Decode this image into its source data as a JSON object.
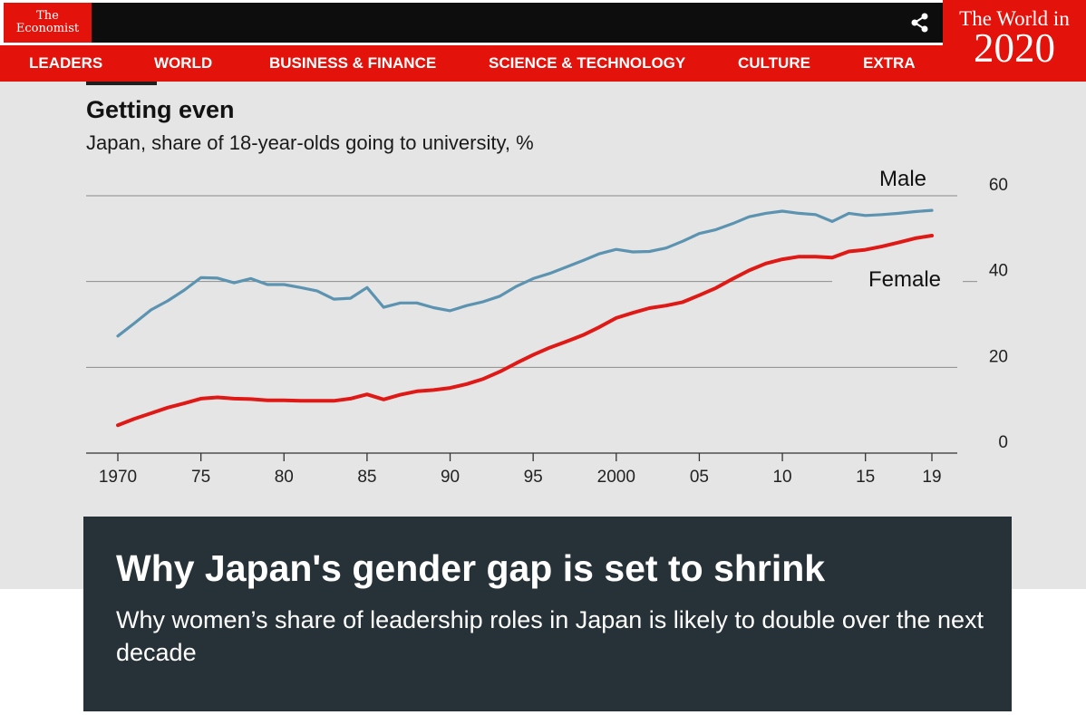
{
  "header": {
    "logo_line1": "The",
    "logo_line2": "Economist",
    "share_icon": "share-icon",
    "nav": [
      "LEADERS",
      "WORLD",
      "BUSINESS & FINANCE",
      "SCIENCE & TECHNOLOGY",
      "CULTURE",
      "EXTRA"
    ],
    "world_in_label": "The World in",
    "world_in_year": "2020"
  },
  "colors": {
    "brand_red": "#e3120b",
    "male_line": "#5b93b0",
    "female_line": "#df1a16",
    "headline_bg": "#263238"
  },
  "chart_data": {
    "type": "line",
    "title": "Getting even",
    "subtitle": "Japan, share of 18-year-olds going to university, %",
    "x_tick_labels": [
      "1970",
      "75",
      "80",
      "85",
      "90",
      "95",
      "2000",
      "05",
      "10",
      "15",
      "19"
    ],
    "y_tick_labels": [
      "60",
      "40",
      "20",
      "0"
    ],
    "ylim": [
      0,
      60
    ],
    "grid": true,
    "x": [
      1970,
      1971,
      1972,
      1973,
      1974,
      1975,
      1976,
      1977,
      1978,
      1979,
      1980,
      1981,
      1982,
      1983,
      1984,
      1985,
      1986,
      1987,
      1988,
      1989,
      1990,
      1991,
      1992,
      1993,
      1994,
      1995,
      1996,
      1997,
      1998,
      1999,
      2000,
      2001,
      2002,
      2003,
      2004,
      2005,
      2006,
      2007,
      2008,
      2009,
      2010,
      2011,
      2012,
      2013,
      2014,
      2015,
      2016,
      2017,
      2018,
      2019
    ],
    "series": [
      {
        "name": "Male",
        "values": [
          27.3,
          30.3,
          33.4,
          35.5,
          38.0,
          40.9,
          40.8,
          39.7,
          40.7,
          39.3,
          39.3,
          38.6,
          37.8,
          35.9,
          36.1,
          38.6,
          34.0,
          35.0,
          35.0,
          33.9,
          33.2,
          34.4,
          35.3,
          36.6,
          38.9,
          40.7,
          41.9,
          43.4,
          44.9,
          46.5,
          47.5,
          46.9,
          47.0,
          47.8,
          49.4,
          51.2,
          52.1,
          53.5,
          55.1,
          55.9,
          56.4,
          55.9,
          55.6,
          54.0,
          55.9,
          55.4,
          55.6,
          55.9,
          56.3,
          56.6
        ]
      },
      {
        "name": "Female",
        "values": [
          6.5,
          8.0,
          9.3,
          10.6,
          11.6,
          12.7,
          13.0,
          12.7,
          12.6,
          12.3,
          12.3,
          12.2,
          12.2,
          12.2,
          12.7,
          13.7,
          12.5,
          13.6,
          14.4,
          14.7,
          15.2,
          16.1,
          17.3,
          19.0,
          21.0,
          22.9,
          24.6,
          26.0,
          27.5,
          29.4,
          31.5,
          32.7,
          33.8,
          34.4,
          35.2,
          36.8,
          38.5,
          40.6,
          42.6,
          44.2,
          45.2,
          45.8,
          45.8,
          45.6,
          47.0,
          47.4,
          48.2,
          49.1,
          50.1,
          50.7
        ]
      }
    ]
  },
  "article": {
    "headline": "Why Japan's gender gap is set to shrink",
    "standfirst": "Why women’s share of leadership roles in Japan is likely to double over the next decade"
  }
}
